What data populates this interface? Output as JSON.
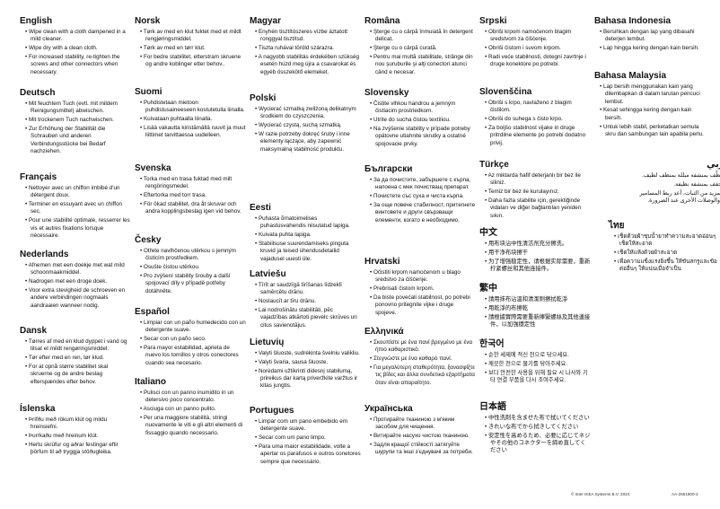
{
  "sections": [
    {
      "id": "english",
      "title": "English",
      "items": [
        "Wipe clean with a cloth dampened in a mild cleaner.",
        "Wipe dry with a clean cloth.",
        "For increased stability, re-tighten the screws and other connectors when necessary."
      ]
    },
    {
      "id": "deutsch",
      "title": "Deutsch",
      "items": [
        "Mit feuchtem Tuch (evtl. mit mildem Reinigungsmittel) abwischen.",
        "Mit trockenem Tuch nachwischen.",
        "Zur Erhöhung der Stabilität die Schrauben und anderen Verbindungsstücke bei Bedarf nachziehen."
      ]
    },
    {
      "id": "francais",
      "title": "Français",
      "items": [
        "Nettoyer avec un chiffon imbibé d'un détergent doux.",
        "Terminer en essuyant avec un chiffon sec.",
        "Pour une stabilité optimale, resserrer les vis et autres fixations lorsque nécessaire."
      ]
    },
    {
      "id": "nederlands",
      "title": "Nederlands",
      "items": [
        "Afnemen met een doekje met wat mild schoonmaakmiddel.",
        "Nadrogen met een droge doek.",
        "Voor extra stevigheid de schroeven en andere verbindingen nogmaals aandraaien wanneer nodig."
      ]
    },
    {
      "id": "dansk",
      "title": "Dansk",
      "items": [
        "Tørres af med en klud dyppet i vand og tilsat et mildt rengøringsmiddel.",
        "Tør efter med en ren, tør klud.",
        "For at opnå større stabilitet skal skruerne og de andre beslag efterspændes efter behov."
      ]
    },
    {
      "id": "islenska",
      "title": "Íslenska",
      "items": [
        "Þrífðu með rökum klút og mildu hreinsiefni.",
        "Þurrkaðu með hreinum klút.",
        "Hertu skrúfur og aðrar festingar eftir þörfum til að tryggja stöðugleika."
      ]
    },
    {
      "id": "norsk",
      "title": "Norsk",
      "items": [
        "Tørk av med en klut fuktet med et mildt rengjøringsmiddel.",
        "Tørk av med en tørr klut.",
        "For bedre stabilitet, etterstram skruene og andre koblinger etter behov.."
      ]
    },
    {
      "id": "suomi",
      "title": "Suomi",
      "items": [
        "Puhdistetaan mietoon puhdistusaineeseen kostutetulla liinalla.",
        "Kuivataan puhtaalla liinalla.",
        "Lisää vakautta kiristämällä ruuvit ja muut liittimet tarvittaessa uudelleen."
      ]
    },
    {
      "id": "svenska",
      "title": "Svenska",
      "items": [
        "Torka med en trasa fuktad med milt rengöringsmedel.",
        "Eftertorka med torr trasa.",
        "För ökad stabilitet, dra åt skruvar och andra kopplingsbeslag igen vid behov."
      ]
    },
    {
      "id": "cesky",
      "title": "Česky",
      "items": [
        "Otřete navlhčenou utěrkou s jemným čisticím prostředkem.",
        "Osušte čistou utěrkou.",
        "Pro zvýšení stability šrouby a další spojovací díly v případě potřeby dotáhněte."
      ]
    },
    {
      "id": "espanol",
      "title": "Español",
      "items": [
        "Limpiar con un paño humedecido con un detergente suave.",
        "Secar con un paño seco.",
        "Para mayor estabilidad, aprieta de nuevo los tornillos y otros conectores cuando sea necesario."
      ]
    },
    {
      "id": "italiano",
      "title": "Italiano",
      "items": [
        "Pulisci con un panno inumidito in un detersivo poco concentrato.",
        "Asciuga con un panno pulito.",
        "Per una maggiore stabilità, stringi nuovamente le viti e gli altri elementi di fissaggio quando necessario."
      ]
    },
    {
      "id": "magyar",
      "title": "Magyar",
      "items": [
        "Enyhén tisztítószeres vízbe áztatott ronggyal tisztítsd.",
        "Tiszta ruhával töröld szárazra.",
        "A nagyobb stabilitás érdekében szükség esetén húzd meg újra a csavarokat és egyéb összekötő elemeket."
      ]
    },
    {
      "id": "polski",
      "title": "Polski",
      "items": [
        "Wycierać szmatką zwilżoną delikatnym środkiem do czyszczenia.",
        "Wycierać czystą, suchą szmatką.",
        "W razie potrzeby dokręć śruby i inne elementy łączące, aby zapewnić maksymalną stabilność produktu."
      ]
    },
    {
      "id": "eesti",
      "title": "Eesti",
      "items": [
        "Puhasta õrnatoimelises puhastusvahendis niisutatud lapiga.",
        "Kuivata puhta lapiga.",
        "Stabiilsuse suurendamiseks pinguta kruvid ja teised ühendusdetailid vajadusel uuesti üle."
      ]
    },
    {
      "id": "latviesu",
      "title": "Latviešu",
      "items": [
        "Tīrīt ar saudzīgā tīrīšanas līdzeklī samērcētu drānu.",
        "Noslaucīt ar tīru drānu.",
        "Lai nodrošinātu stabilitāti, pēc vajadzības atkārtoti pievelc skrūves un citus savienotājus."
      ]
    },
    {
      "id": "lietuviu",
      "title": "Lietuvių",
      "items": [
        "Valyti šluoste, sudrėkinta švelniu valikliu.",
        "Valyti švaria, sausa šluoste.",
        "Norėdami užtikrinti didesnį stabilumą, prireikus dar kartą priveržkite varžtus ir kitas jungtis."
      ]
    },
    {
      "id": "portugues",
      "title": "Portugues",
      "items": [
        "Limpar com um pano embebido em detergente suave.",
        "Secar com um pano limpo.",
        "Para uma maior estabilidade, volte a apertar os parafusos e outros conetores sempre que necessário."
      ]
    },
    {
      "id": "romana",
      "title": "Româna",
      "items": [
        "Şterge cu o cârpă înmuiată în detergent delicat.",
        "Şterge cu o cârpă curată.",
        "Pentru mai multă stabilitate, strânge din nou şuruburile şi alţi conectori atunci când e necesar."
      ]
    },
    {
      "id": "slovensky",
      "title": "Slovensky",
      "items": [
        "Čistite vlhkou handrou a jemným čistiacim prostriedkom.",
        "Utrite do sucha čistou textíliou.",
        "Na zvýšenie stability v prípade potreby opätovne utiahnite skrutky a ostatné spojovacie prvky."
      ]
    },
    {
      "id": "bulgarski",
      "title": "Български",
      "items": [
        "За да почистите, забършете с кърпа, напоена с мек почистващ препарат.",
        "Почистете със суха и чиста кърпа.",
        "За още повече стабилност, притегнете винтовете и други свързващи елементи, когато е необходимо."
      ]
    },
    {
      "id": "hrvatski",
      "title": "Hrvatski",
      "items": [
        "Očistiti krpom namočenom u blago sredstvo za čišćenje.",
        "Prebrisati čistom krpom.",
        "Da biste povećali stabilnost, po potrebi ponovno pritegnite vijke i druge spojeve."
      ]
    },
    {
      "id": "ellinika",
      "title": "Ελληνικά",
      "items": [
        "Σκουπίστε με ένα πανί βρεγμένο με ένα ήπιο καθαριστικό.",
        "Στεγνώστε με ένα καθαρό πανί.",
        "Για μεγαλύτερη σταθερότητα, ξανασφίξτε τις βίδες και άλλα συνδετικά εξαρτήματα όταν είναι απαραίτητο."
      ]
    },
    {
      "id": "ukrainska",
      "title": "Українська",
      "items": [
        "Протирайте тканиною з м'яким засобом для чищення.",
        "Витирайте насухо чистою тканиною.",
        "Задля кращої стійкості затягуйте шурупи та інші з'єднувачі за потреби."
      ]
    },
    {
      "id": "srpski",
      "title": "Srpski",
      "items": [
        "Obriši krpom namočenom blagim sredstvom za čišćenje.",
        "Obriši čistom i suvom krpom.",
        "Radi veće stabilnosti, dotegni zavrtnje i druge konektore po potrebi."
      ]
    },
    {
      "id": "slovenscina",
      "title": "Slovenščina",
      "items": [
        "Obriši s krpo, navlaženo z blagim čistilom.",
        "Obriši do suhega s čisto krpo.",
        "Za boljšo stabilnost vijake in druge pritrdilne elemente po potrebi dodatno privij."
      ]
    },
    {
      "id": "turkce",
      "title": "Türkçe",
      "items": [
        "Az miktarda hafif deterjanlı bir bez ile siliniz.",
        "Temiz bir bez ile kurulayınız.",
        "Daha fazla stabilite için, gerektiğinde vidaları ve diğer bağlantıları yeniden sıkın."
      ]
    },
    {
      "id": "zhongwen",
      "title": "中文",
      "items": [
        "用布块沾中性清洁剂充分擦洗。",
        "用干净布块擦干",
        "为了增强稳定性，请根据实际需要，重新拧紧螺丝和其他连接件。"
      ]
    },
    {
      "id": "fanzhong",
      "title": "繁中",
      "items": [
        "請用抹布沾溫和清潔劑擦拭乾淨",
        "用乾淨的布擦乾",
        "請根據實際需要重新擰緊螺絲及其他連接件，以加強穩定性"
      ]
    },
    {
      "id": "hangugeo",
      "title": "한국어",
      "items": [
        "순한 세제에 적신 천으로 닦으세요.",
        "깨끗한 천으로 물기를 닦아주세요.",
        "보다 안전한 사용을 위해 필요 시 나사와 기타 연결 부품을 다시 조여주세요."
      ]
    },
    {
      "id": "nihongo",
      "title": "日本語",
      "items": [
        "中性洗剤を含ませた布で拭いてください",
        "きれいな布でから拭きしてください",
        "安定性を高めるため、必要に応じてネジやその他のコネクターを締め直してください"
      ]
    },
    {
      "id": "bahasa-indonesia",
      "title": "Bahasa Indonesia",
      "items": [
        "Bersihkan dengan lap yang dibasahi deterjen lembut.",
        "Lap hingga kering dengan kain bersih."
      ]
    },
    {
      "id": "bahasa-malaysia",
      "title": "Bahasa Malaysia",
      "items": [
        "Lap bersih menggunakan kain yang dilembapkan di dalam larutan pencuci lembut.",
        "Kesat sehingga kering dengan kain bersih.",
        "Untuk lebih stabil, perketatkan semula skru dan sambungan lain apabila perlu."
      ]
    },
    {
      "id": "arabi",
      "title": "عربي",
      "items": [
        "نظّف بمنشفة مبللة بمنظف لطيف.",
        "جفف بمنشفة نظيفة.",
        "لمزيد من الثبات، أعد ربط المسامير والوصلات الأخرى عند الضرورة."
      ]
    },
    {
      "id": "thai",
      "title": "ไทย",
      "items": [
        "เช็ดด้วยผ้าชุบน้ำยาทำความสะอาดอ่อนๆ เช็ดให้สะอาด",
        "เช็ดให้แห้งด้วยผ้าสะอาด",
        "เพื่อความแข็งแรงยิ่งขึ้น ให้ขันสกรูและข้อต่ออื่นๆ ให้แน่นเมื่อจำเป็น"
      ]
    }
  ],
  "footer": {
    "copyright": "© Inter IKEA Systems B.V. 2024",
    "doc_id": "AA-2551900-2"
  }
}
